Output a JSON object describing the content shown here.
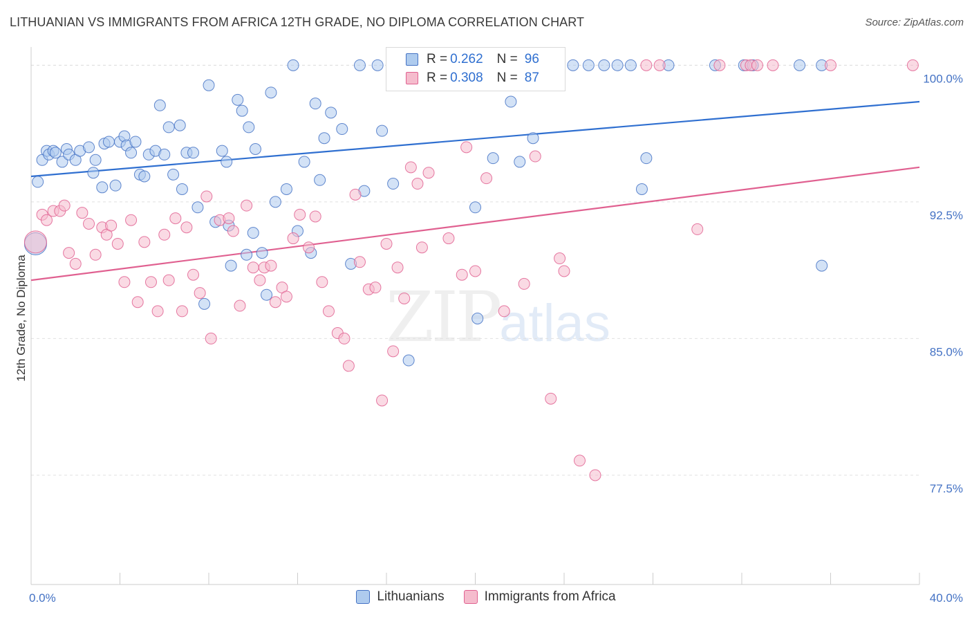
{
  "title": "LITHUANIAN VS IMMIGRANTS FROM AFRICA 12TH GRADE, NO DIPLOMA CORRELATION CHART",
  "source": "Source: ZipAtlas.com",
  "watermark": {
    "zip": "ZIP",
    "atlas": "atlas"
  },
  "colors": {
    "blue": "#4472c4",
    "blue_fill": "#aecbee",
    "pink": "#e06090",
    "pink_fill": "#f5bccd",
    "grid": "#e0e0e0"
  },
  "legend": {
    "r_label": "R =",
    "n_label": "N =",
    "rows": [
      {
        "r": "0.262",
        "n": "96"
      },
      {
        "r": "0.308",
        "n": "87"
      }
    ]
  },
  "chart_data": {
    "type": "scatter",
    "title": "LITHUANIAN VS IMMIGRANTS FROM AFRICA 12TH GRADE, NO DIPLOMA CORRELATION CHART",
    "xlabel": "",
    "ylabel": "12th Grade, No Diploma",
    "xlim": [
      0,
      40
    ],
    "ylim": [
      71.5,
      101
    ],
    "x_tick_labels": [
      "0.0%",
      "40.0%"
    ],
    "y_ticks": [
      77.5,
      85.0,
      92.5,
      100.0
    ],
    "y_tick_labels": [
      "77.5%",
      "85.0%",
      "92.5%",
      "100.0%"
    ],
    "grid": true,
    "legend_position": "top-center",
    "series": [
      {
        "name": "Lithuanians",
        "color": "#4472c4",
        "trend": {
          "x": [
            0,
            40
          ],
          "y": [
            93.9,
            98.0
          ]
        },
        "points": [
          [
            0.2,
            90.2
          ],
          [
            0.3,
            93.6
          ],
          [
            0.5,
            94.8
          ],
          [
            0.7,
            95.3
          ],
          [
            0.8,
            95.1
          ],
          [
            1.0,
            95.3
          ],
          [
            1.1,
            95.2
          ],
          [
            1.4,
            94.7
          ],
          [
            1.6,
            95.4
          ],
          [
            1.7,
            95.1
          ],
          [
            2.0,
            94.8
          ],
          [
            2.2,
            95.3
          ],
          [
            2.6,
            95.5
          ],
          [
            2.8,
            94.1
          ],
          [
            2.9,
            94.8
          ],
          [
            3.2,
            93.3
          ],
          [
            3.3,
            95.7
          ],
          [
            3.5,
            95.8
          ],
          [
            3.8,
            93.4
          ],
          [
            4.0,
            95.8
          ],
          [
            4.2,
            96.1
          ],
          [
            4.3,
            95.6
          ],
          [
            4.5,
            95.2
          ],
          [
            4.7,
            95.8
          ],
          [
            4.9,
            94.0
          ],
          [
            5.1,
            93.9
          ],
          [
            5.3,
            95.1
          ],
          [
            5.6,
            95.3
          ],
          [
            5.8,
            97.8
          ],
          [
            6.0,
            95.1
          ],
          [
            6.2,
            96.6
          ],
          [
            6.4,
            94.0
          ],
          [
            6.7,
            96.7
          ],
          [
            6.8,
            93.2
          ],
          [
            7.0,
            95.2
          ],
          [
            7.3,
            95.2
          ],
          [
            7.5,
            92.2
          ],
          [
            7.8,
            86.9
          ],
          [
            8.0,
            98.9
          ],
          [
            8.3,
            91.4
          ],
          [
            8.6,
            95.3
          ],
          [
            8.8,
            94.7
          ],
          [
            8.9,
            91.2
          ],
          [
            9.0,
            89.0
          ],
          [
            9.3,
            98.1
          ],
          [
            9.5,
            97.5
          ],
          [
            9.7,
            89.6
          ],
          [
            9.8,
            96.6
          ],
          [
            10.0,
            90.8
          ],
          [
            10.1,
            95.4
          ],
          [
            10.4,
            89.7
          ],
          [
            10.6,
            87.4
          ],
          [
            10.8,
            98.5
          ],
          [
            11.0,
            92.5
          ],
          [
            11.5,
            93.2
          ],
          [
            11.8,
            100.0
          ],
          [
            12.0,
            90.9
          ],
          [
            12.3,
            94.7
          ],
          [
            12.6,
            89.7
          ],
          [
            12.8,
            97.9
          ],
          [
            13.0,
            93.7
          ],
          [
            13.2,
            96.0
          ],
          [
            13.5,
            97.4
          ],
          [
            14.0,
            96.5
          ],
          [
            14.4,
            89.1
          ],
          [
            14.8,
            100.0
          ],
          [
            15.0,
            93.1
          ],
          [
            15.6,
            100.0
          ],
          [
            15.8,
            96.4
          ],
          [
            16.3,
            93.5
          ],
          [
            16.5,
            100.0
          ],
          [
            17.0,
            83.8
          ],
          [
            18.2,
            100.0
          ],
          [
            19.3,
            100.0
          ],
          [
            20.0,
            92.2
          ],
          [
            20.1,
            86.1
          ],
          [
            20.8,
            94.9
          ],
          [
            21.6,
            98.0
          ],
          [
            21.8,
            100.0
          ],
          [
            22.0,
            94.7
          ],
          [
            22.6,
            96.0
          ],
          [
            23.5,
            100.0
          ],
          [
            24.4,
            100.0
          ],
          [
            25.1,
            100.0
          ],
          [
            25.8,
            100.0
          ],
          [
            26.4,
            100.0
          ],
          [
            27.0,
            100.0
          ],
          [
            27.5,
            93.2
          ],
          [
            27.7,
            94.9
          ],
          [
            28.7,
            100.0
          ],
          [
            30.8,
            100.0
          ],
          [
            32.1,
            100.0
          ],
          [
            32.5,
            100.0
          ],
          [
            34.6,
            100.0
          ],
          [
            35.6,
            100.0
          ],
          [
            35.6,
            89.0
          ]
        ]
      },
      {
        "name": "Immigrants from Africa",
        "color": "#e06090",
        "trend": {
          "x": [
            0,
            40
          ],
          "y": [
            88.2,
            94.4
          ]
        },
        "points": [
          [
            0.2,
            90.3
          ],
          [
            0.5,
            91.8
          ],
          [
            0.7,
            91.5
          ],
          [
            1.0,
            92.0
          ],
          [
            1.3,
            92.0
          ],
          [
            1.5,
            92.3
          ],
          [
            1.7,
            89.7
          ],
          [
            2.0,
            89.1
          ],
          [
            2.3,
            91.9
          ],
          [
            2.6,
            91.3
          ],
          [
            2.9,
            89.6
          ],
          [
            3.2,
            91.1
          ],
          [
            3.4,
            90.7
          ],
          [
            3.6,
            91.2
          ],
          [
            3.9,
            90.2
          ],
          [
            4.2,
            88.1
          ],
          [
            4.5,
            91.5
          ],
          [
            4.8,
            87.0
          ],
          [
            5.1,
            90.3
          ],
          [
            5.4,
            88.1
          ],
          [
            5.7,
            86.5
          ],
          [
            6.0,
            90.7
          ],
          [
            6.2,
            88.2
          ],
          [
            6.5,
            91.6
          ],
          [
            6.8,
            86.5
          ],
          [
            7.0,
            91.1
          ],
          [
            7.3,
            88.5
          ],
          [
            7.6,
            87.5
          ],
          [
            7.9,
            92.8
          ],
          [
            8.1,
            85.0
          ],
          [
            8.5,
            91.5
          ],
          [
            8.9,
            91.6
          ],
          [
            9.1,
            90.9
          ],
          [
            9.4,
            86.8
          ],
          [
            9.7,
            92.3
          ],
          [
            10.0,
            88.9
          ],
          [
            10.3,
            88.2
          ],
          [
            10.5,
            88.9
          ],
          [
            10.8,
            89.0
          ],
          [
            11.0,
            87.0
          ],
          [
            11.3,
            87.8
          ],
          [
            11.5,
            87.3
          ],
          [
            11.8,
            90.5
          ],
          [
            12.1,
            91.8
          ],
          [
            12.5,
            90.0
          ],
          [
            12.8,
            91.7
          ],
          [
            13.1,
            88.1
          ],
          [
            13.4,
            86.5
          ],
          [
            13.8,
            85.3
          ],
          [
            14.1,
            85.0
          ],
          [
            14.3,
            83.5
          ],
          [
            14.6,
            92.9
          ],
          [
            14.8,
            89.2
          ],
          [
            15.2,
            87.7
          ],
          [
            15.5,
            87.8
          ],
          [
            15.8,
            81.6
          ],
          [
            16.0,
            90.2
          ],
          [
            16.3,
            84.3
          ],
          [
            16.5,
            88.9
          ],
          [
            16.8,
            87.2
          ],
          [
            17.1,
            94.4
          ],
          [
            17.4,
            93.5
          ],
          [
            17.6,
            90.0
          ],
          [
            17.9,
            94.1
          ],
          [
            18.8,
            90.5
          ],
          [
            19.4,
            88.5
          ],
          [
            19.6,
            95.5
          ],
          [
            20.0,
            88.7
          ],
          [
            20.5,
            93.8
          ],
          [
            21.3,
            86.5
          ],
          [
            22.2,
            88.0
          ],
          [
            22.7,
            95.0
          ],
          [
            23.4,
            81.7
          ],
          [
            23.8,
            89.4
          ],
          [
            24.0,
            88.7
          ],
          [
            24.7,
            78.3
          ],
          [
            25.4,
            77.5
          ],
          [
            27.7,
            100.0
          ],
          [
            28.3,
            100.0
          ],
          [
            30.0,
            91.0
          ],
          [
            31.0,
            100.0
          ],
          [
            32.2,
            100.0
          ],
          [
            32.4,
            100.0
          ],
          [
            32.7,
            100.0
          ],
          [
            33.4,
            100.0
          ],
          [
            36.0,
            100.0
          ],
          [
            39.7,
            100.0
          ]
        ]
      }
    ]
  },
  "bottom_legend": [
    "Lithuanians",
    "Immigrants from Africa"
  ]
}
